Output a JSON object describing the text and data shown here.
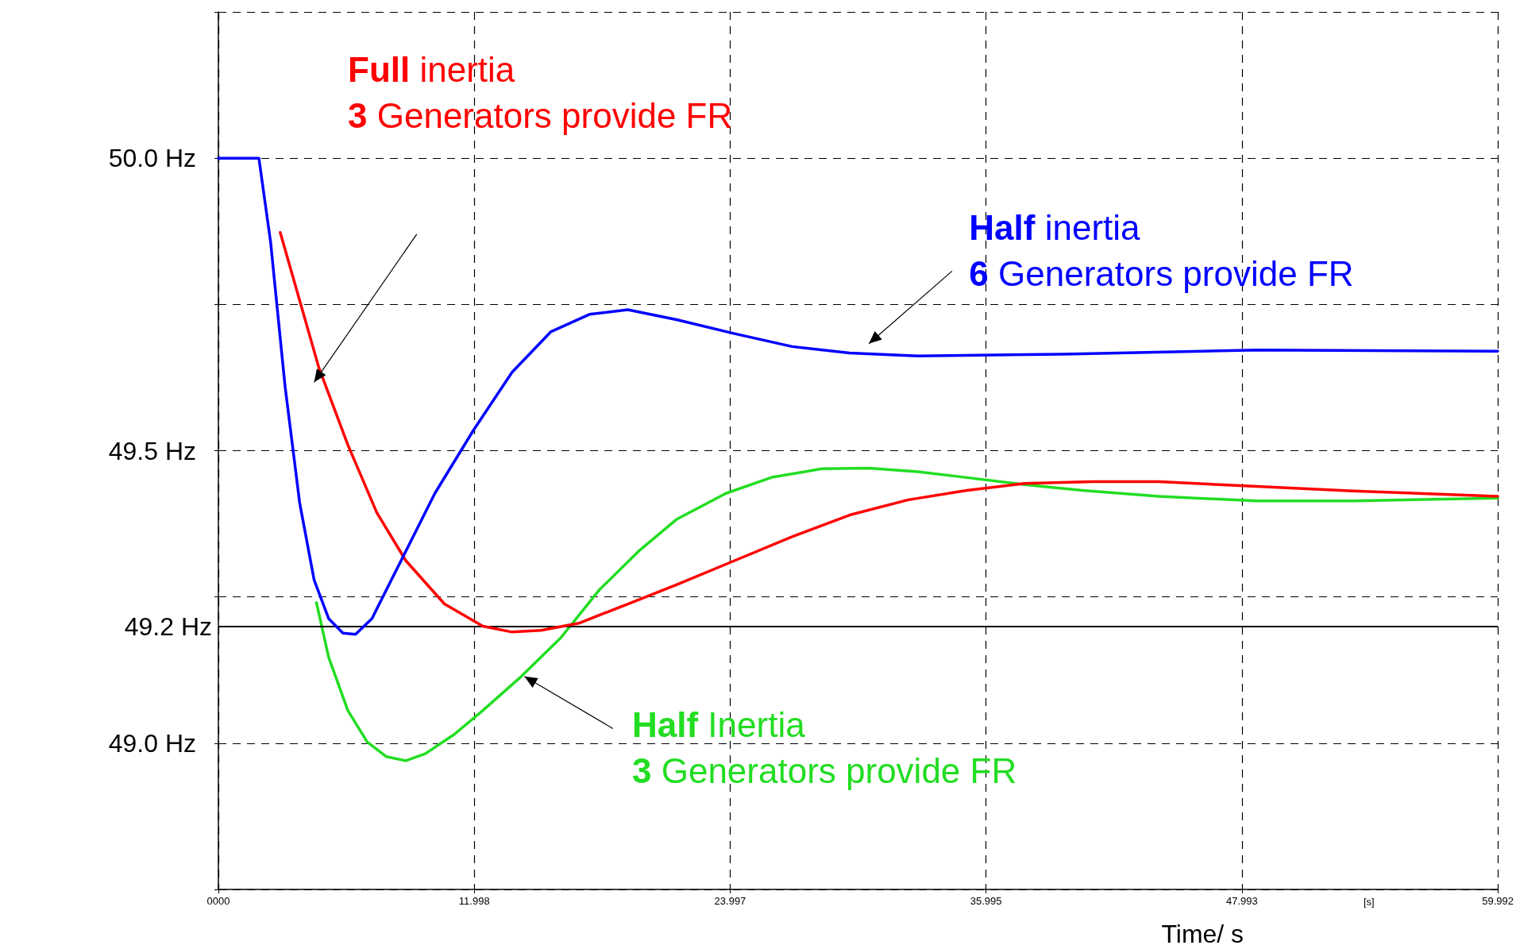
{
  "chart_data": {
    "type": "line",
    "xlabel": "Time/ s",
    "xlim": [
      0,
      59.992
    ],
    "xticks": [
      {
        "value": 0,
        "label": "0000"
      },
      11.998,
      23.997,
      35.995,
      47.993,
      59.992
    ],
    "ylim": [
      48.75,
      50.25
    ],
    "yticks": [
      {
        "value": 48.75,
        "label": null
      },
      {
        "value": 49.0,
        "label": "49.0 Hz"
      },
      {
        "value": 49.25,
        "label": null
      },
      {
        "value": 49.5,
        "label": "49.5 Hz"
      },
      {
        "value": 49.75,
        "label": null
      },
      {
        "value": 50.0,
        "label": "50.0 Hz"
      },
      {
        "value": 50.25,
        "label": null
      }
    ],
    "grid": true,
    "line_style": "solid",
    "annotations": [
      "[s]"
    ],
    "ref_lines": [
      {
        "axis": "y",
        "value": 49.2,
        "label": "49.2 Hz",
        "color": "#000000",
        "line_style": "solid"
      }
    ],
    "series": [
      {
        "name": "Full inertia\n3 Generators provide FR",
        "color": "#ff0000",
        "x": [
          2.9,
          3.81,
          4.71,
          6.07,
          7.43,
          8.79,
          10.6,
          12.4,
          13.77,
          15.13,
          16.9,
          19.2,
          21.5,
          24.2,
          26.9,
          29.6,
          32.35,
          35.1,
          37.8,
          41.0,
          44.1,
          48.7,
          53.2,
          59.99
        ],
        "values": [
          49.873,
          49.757,
          49.642,
          49.51,
          49.394,
          49.312,
          49.238,
          49.2,
          49.19,
          49.193,
          49.205,
          49.238,
          49.271,
          49.312,
          49.353,
          49.39,
          49.416,
          49.432,
          49.444,
          49.447,
          49.447,
          49.439,
          49.431,
          49.422
        ]
      },
      {
        "name": "Half inertia\n6 Generators provide FR",
        "color": "#0000ff",
        "x": [
          0,
          1.9,
          2.45,
          3.13,
          3.81,
          4.49,
          5.17,
          5.84,
          6.43,
          7.2,
          8.33,
          10.15,
          11.96,
          13.77,
          15.58,
          17.4,
          19.2,
          21.48,
          24.2,
          26.9,
          29.6,
          32.8,
          39.6,
          48.7,
          59.99
        ],
        "values": [
          50.0,
          50.0,
          49.856,
          49.609,
          49.411,
          49.279,
          49.213,
          49.188,
          49.186,
          49.213,
          49.295,
          49.427,
          49.535,
          49.634,
          49.703,
          49.733,
          49.741,
          49.724,
          49.7,
          49.678,
          49.667,
          49.662,
          49.665,
          49.672,
          49.67
        ]
      },
      {
        "name": "Half Inertia\n3 Generators provide FR",
        "color": "#22dd22",
        "x": [
          4.6,
          5.17,
          6.07,
          6.98,
          7.88,
          8.79,
          9.7,
          11.06,
          12.4,
          14.2,
          16.05,
          17.86,
          19.7,
          21.5,
          23.8,
          26.0,
          28.3,
          30.5,
          32.8,
          35.1,
          37.8,
          40.5,
          44.1,
          48.7,
          53.2,
          59.99
        ],
        "values": [
          49.24,
          49.147,
          49.056,
          49.002,
          48.977,
          48.97,
          48.982,
          49.015,
          49.056,
          49.114,
          49.18,
          49.262,
          49.328,
          49.383,
          49.427,
          49.455,
          49.469,
          49.47,
          49.464,
          49.454,
          49.442,
          49.432,
          49.422,
          49.414,
          49.414,
          49.419
        ]
      }
    ]
  }
}
